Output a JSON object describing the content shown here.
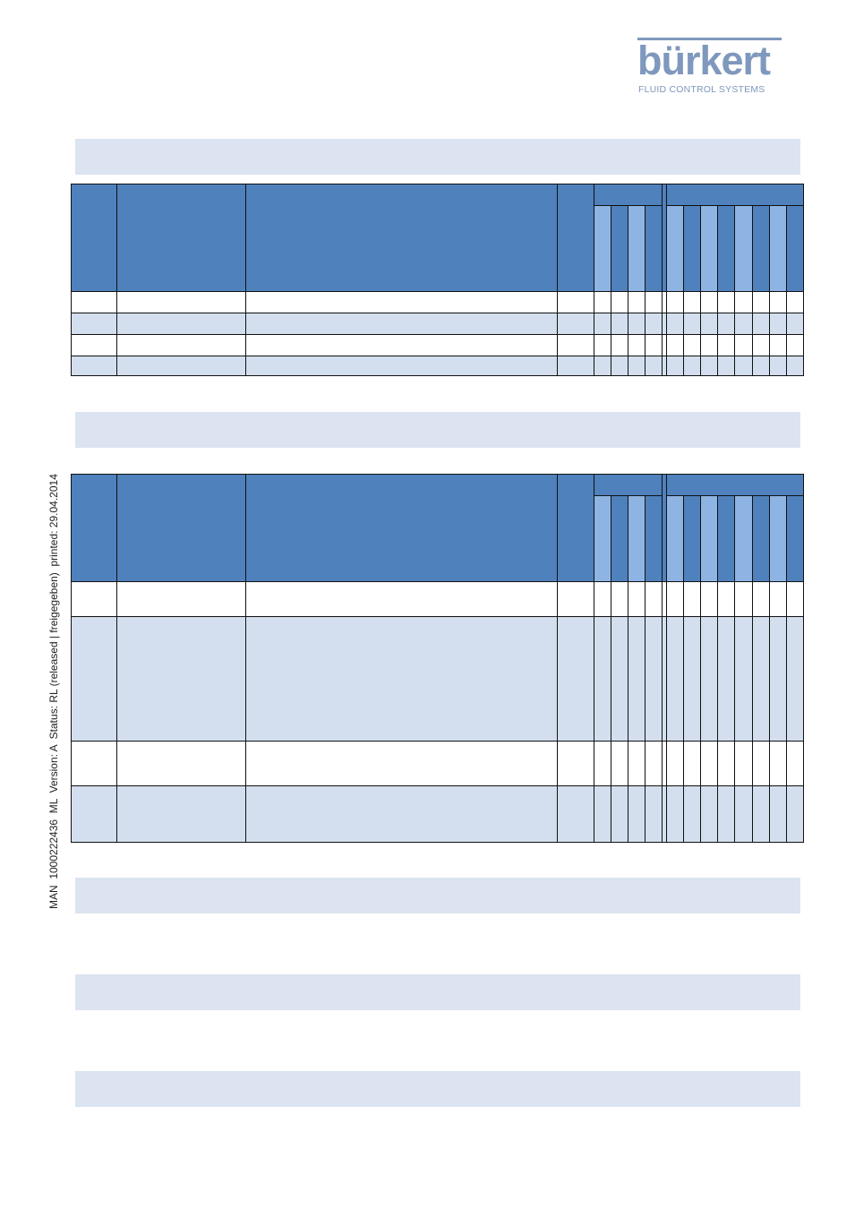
{
  "header": {
    "logo_text": "bürkert",
    "logo_tagline": "FLUID CONTROL SYSTEMS"
  },
  "sidebar": {
    "document_info": "MAN  1000222436  ML  Version: A  Status: RL (released | freigegeben)  printed: 29.04.2014"
  },
  "colors": {
    "header_blue": "#4f81bd",
    "subheader_blue": "#8eb4e3",
    "band_light": "#dbe4f0",
    "row_alt": "#d3dfee",
    "logo": "#7f98bd"
  }
}
